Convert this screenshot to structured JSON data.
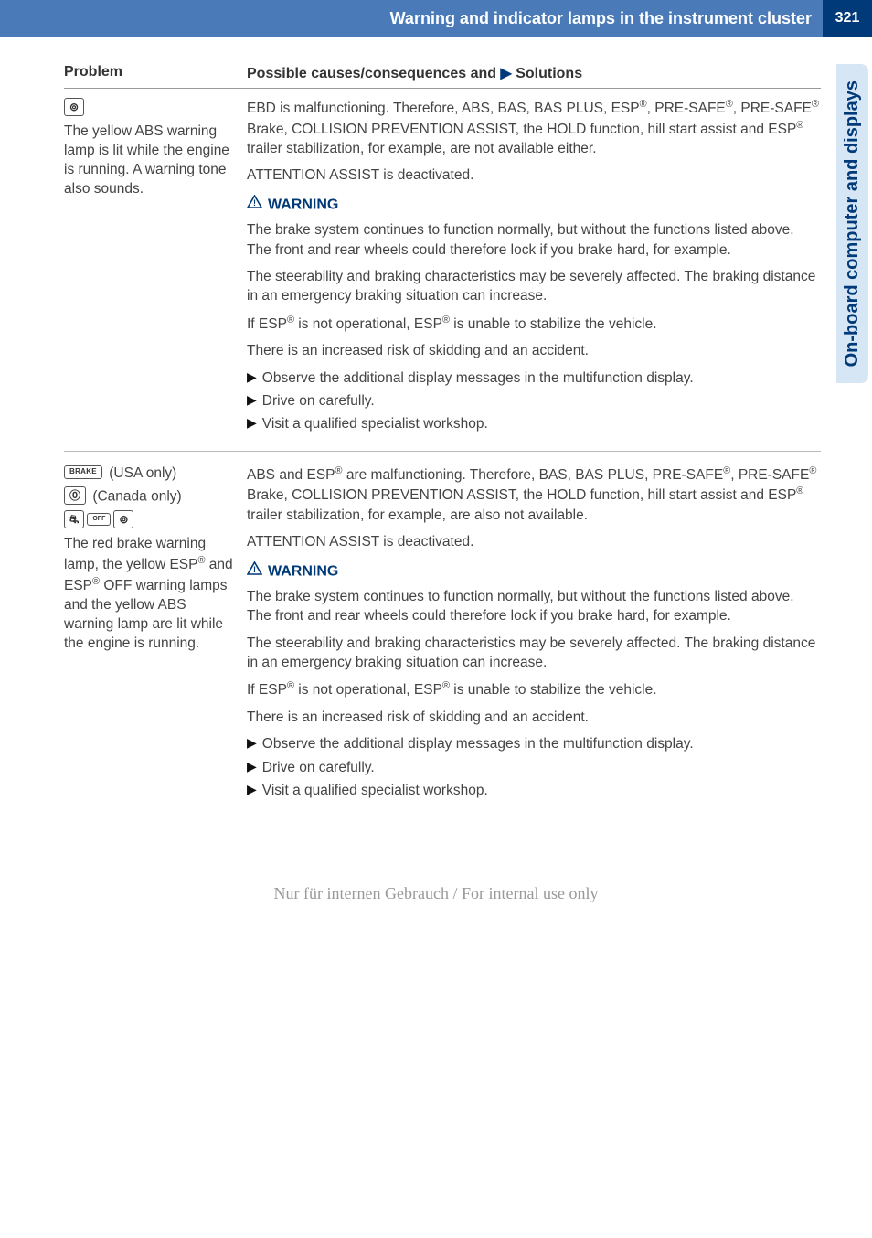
{
  "colors": {
    "header_bg": "#4a7bb8",
    "pagenum_bg": "#003a78",
    "accent": "#003a78",
    "sidetab_bg": "#d6e6f5",
    "body_text": "#444444"
  },
  "header": {
    "title": "Warning and indicator lamps in the instrument cluster",
    "page_number": "321"
  },
  "side_tab": {
    "label": "On-board computer and displays"
  },
  "table_headers": {
    "problem": "Problem",
    "solutions_prefix": "Possible causes/consequences and ",
    "solutions_suffix": " Solutions",
    "arrow": "▶"
  },
  "warning_label": "WARNING",
  "rows": [
    {
      "problem": {
        "icons": [
          {
            "glyph": "⊚",
            "name": "abs-icon"
          }
        ],
        "text": "The yellow ABS warning lamp is lit while the engine is running. A warning tone also sounds."
      },
      "solution": {
        "intro_html": "EBD is malfunctioning. Therefore, ABS, BAS, BAS PLUS, ESP<sup>®</sup>, PRE-SAFE<sup>®</sup>, PRE-SAFE<sup>®</sup> Brake, COLLISION PREVENTION ASSIST, the HOLD function, hill start assist and ESP<sup>®</sup> trailer stabilization, for example, are not available either.",
        "intro2": "ATTENTION ASSIST is deactivated.",
        "warn_paras": [
          "The brake system continues to function normally, but without the functions listed above. The front and rear wheels could therefore lock if you brake hard, for example.",
          "The steerability and braking characteristics may be severely affected. The braking distance in an emergency braking situation can increase."
        ],
        "warn_paras_html": [
          "If ESP<sup>®</sup> is not operational, ESP<sup>®</sup> is unable to stabilize the vehicle.",
          "There is an increased risk of skidding and an accident."
        ],
        "bullets": [
          "Observe the additional display messages in the multifunction display.",
          "Drive on carefully.",
          "Visit a qualified specialist workshop."
        ]
      }
    },
    {
      "problem": {
        "lines": [
          {
            "icon": {
              "glyph": "BRAKE",
              "name": "brake-text-icon",
              "fs": "8px"
            },
            "text": " (USA only)"
          },
          {
            "icon": {
              "glyph": "⓪",
              "name": "brake-circle-icon"
            },
            "text": " (Canada only)"
          }
        ],
        "icons_row": [
          {
            "glyph": "⛐",
            "name": "esp-icon"
          },
          {
            "glyph": "OFF",
            "name": "esp-off-icon",
            "fs": "7px"
          },
          {
            "glyph": "⊚",
            "name": "abs-icon-2"
          }
        ],
        "text_html": "The red brake warning lamp, the yellow ESP<sup>®</sup> and ESP<sup>®</sup> OFF warning lamps and the yellow ABS warning lamp are lit while the engine is running."
      },
      "solution": {
        "intro_html": "ABS and ESP<sup>®</sup> are malfunctioning. Therefore, BAS, BAS PLUS, PRE-SAFE<sup>®</sup>, PRE-SAFE<sup>®</sup> Brake, COLLISION PREVENTION ASSIST, the HOLD function, hill start assist and ESP<sup>®</sup> trailer stabilization, for example, are also not available.",
        "intro2": "ATTENTION ASSIST is deactivated.",
        "warn_paras": [
          "The brake system continues to function normally, but without the functions listed above. The front and rear wheels could therefore lock if you brake hard, for example.",
          "The steerability and braking characteristics may be severely affected. The braking distance in an emergency braking situation can increase."
        ],
        "warn_paras_html": [
          "If ESP<sup>®</sup> is not operational, ESP<sup>®</sup> is unable to stabilize the vehicle.",
          "There is an increased risk of skidding and an accident."
        ],
        "bullets": [
          "Observe the additional display messages in the multifunction display.",
          "Drive on carefully.",
          "Visit a qualified specialist workshop."
        ]
      }
    }
  ],
  "footer": {
    "text": "Nur für internen Gebrauch / For internal use only"
  }
}
